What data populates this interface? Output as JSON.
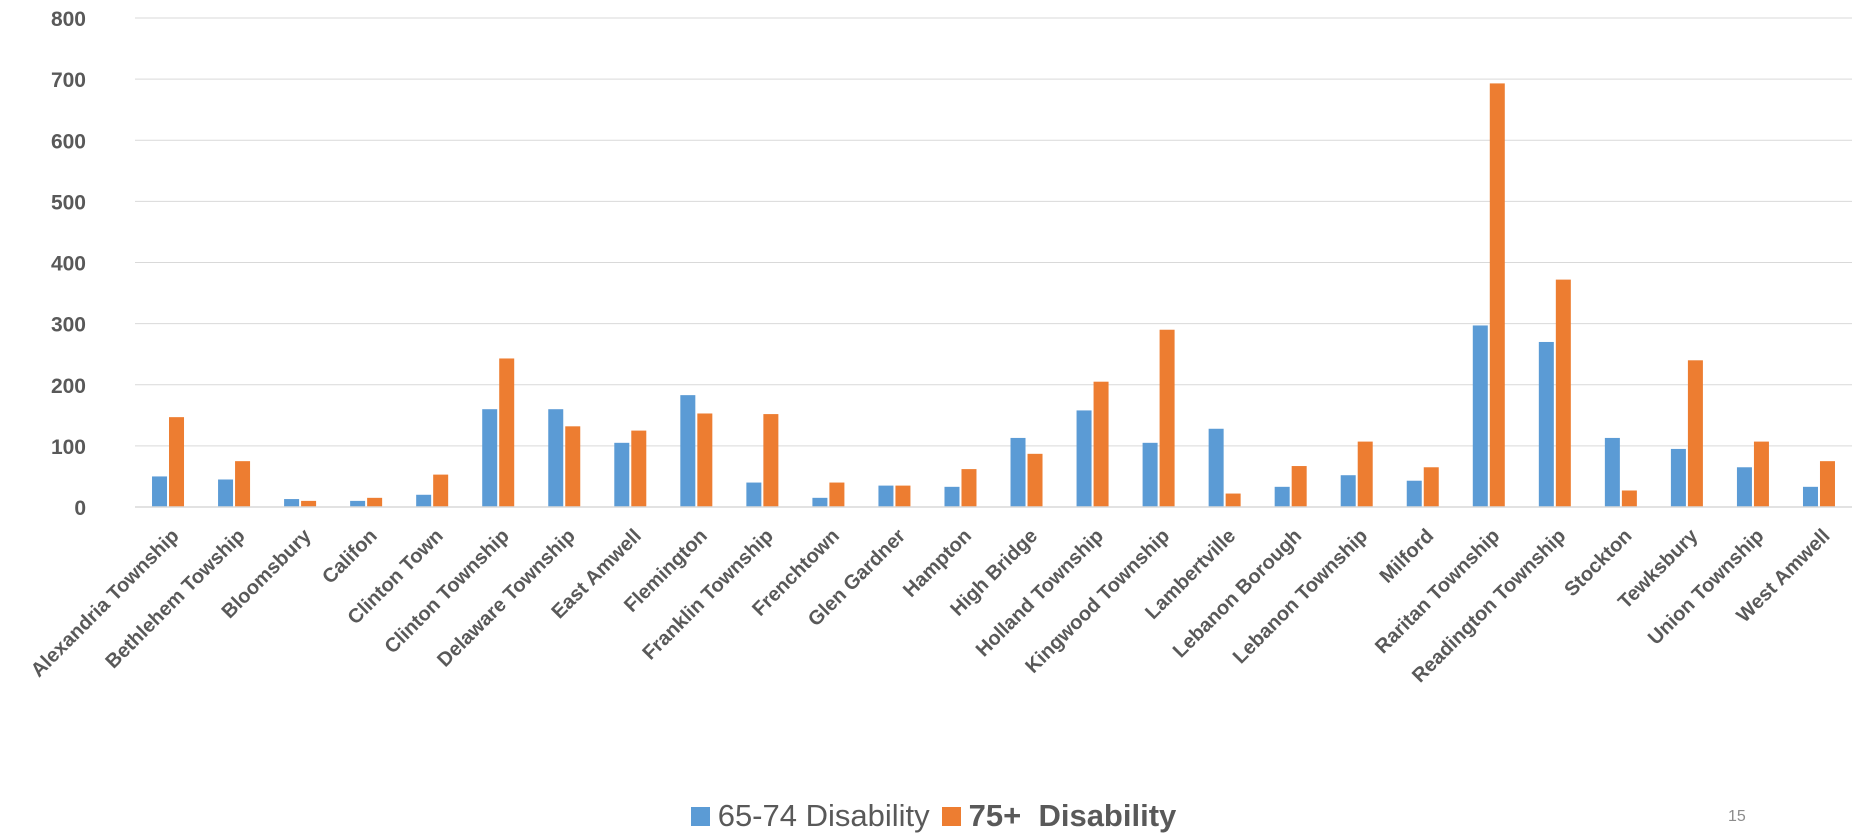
{
  "chart_data": {
    "type": "bar",
    "categories": [
      "Alexandria Township",
      "Bethlehem Towship",
      "Bloomsbury",
      "Califon",
      "Clinton Town",
      "Clinton Township",
      "Delaware Township",
      "East Amwell",
      "Flemington",
      "Franklin Township",
      "Frenchtown",
      "Glen Gardner",
      "Hampton",
      "High Bridge",
      "Holland Township",
      "Kingwood Township",
      "Lambertville",
      "Lebanon Borough",
      "Lebanon Township",
      "Milford",
      "Raritan Township",
      "Readington Township",
      "Stockton",
      "Tewksbury",
      "Union Township",
      "West Amwell"
    ],
    "series": [
      {
        "name": "65-74 Disability",
        "color": "#5B9BD5",
        "values": [
          50,
          45,
          13,
          10,
          20,
          160,
          160,
          105,
          183,
          40,
          15,
          35,
          33,
          113,
          158,
          105,
          128,
          33,
          52,
          43,
          297,
          270,
          113,
          95,
          65,
          33
        ]
      },
      {
        "name": "75+  Disability",
        "color": "#ED7D31",
        "values": [
          147,
          75,
          10,
          15,
          53,
          243,
          132,
          125,
          153,
          152,
          40,
          35,
          62,
          87,
          205,
          290,
          22,
          67,
          107,
          65,
          693,
          372,
          27,
          240,
          107,
          75
        ]
      }
    ],
    "ylim": [
      0,
      800
    ],
    "yticks": [
      0,
      100,
      200,
      300,
      400,
      500,
      600,
      700,
      800
    ],
    "grid": true,
    "legend_position": "bottom"
  },
  "page_number": "15"
}
